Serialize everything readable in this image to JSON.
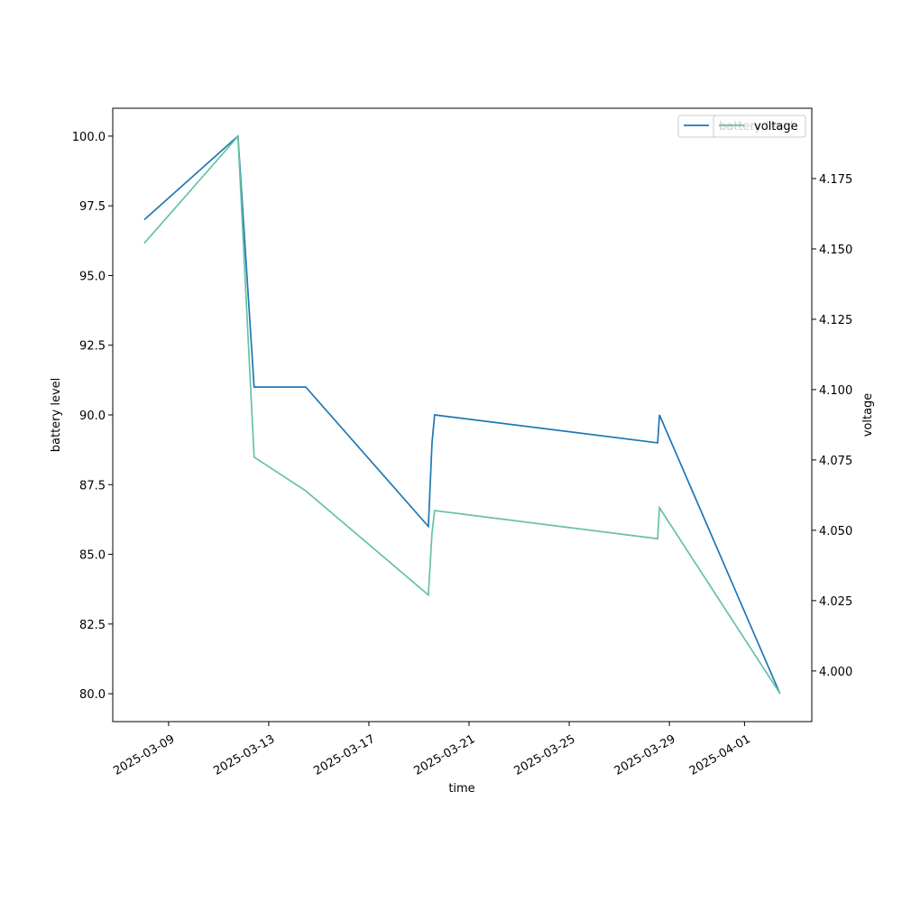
{
  "chart_data": {
    "type": "line",
    "x_label": "time",
    "y_label": "battery level",
    "y2_label": "voltage",
    "x": [
      "2025-03-08 00:40",
      "2025-03-11 18:30",
      "2025-03-12 10:00",
      "2025-03-14 11:30",
      "2025-03-19 09:00",
      "2025-03-19 12:30",
      "2025-03-19 15:00",
      "2025-03-28 12:45",
      "2025-03-28 14:30",
      "2025-04-02 10:00"
    ],
    "series": [
      {
        "name": "battery level",
        "color": "#1f77b4",
        "values": [
          97,
          100,
          91,
          91,
          86,
          89,
          90,
          89,
          90,
          80
        ]
      },
      {
        "name": "voltage",
        "color": "#66c2a5",
        "axis": "y2",
        "values": [
          4.152,
          4.19,
          4.076,
          4.064,
          4.027,
          4.049,
          4.057,
          4.047,
          4.058,
          3.992
        ]
      }
    ],
    "xlim": [
      "2025-03-06 18:30",
      "2025-04-03 16:30"
    ],
    "xticks": [
      "2025-03-09",
      "2025-03-13",
      "2025-03-17",
      "2025-03-21",
      "2025-03-25",
      "2025-03-29",
      "2025-04-01"
    ],
    "ylim": [
      79,
      101
    ],
    "yticks": [
      {
        "value": 80,
        "label": "80.0"
      },
      {
        "value": 82.5,
        "label": "82.5"
      },
      {
        "value": 85,
        "label": "85.0"
      },
      {
        "value": 87.5,
        "label": "87.5"
      },
      {
        "value": 90,
        "label": "90.0"
      },
      {
        "value": 92.5,
        "label": "92.5"
      },
      {
        "value": 95,
        "label": "95.0"
      },
      {
        "value": 97.5,
        "label": "97.5"
      },
      {
        "value": 100,
        "label": "100.0"
      }
    ],
    "y2lim": [
      3.982,
      4.2
    ],
    "y2ticks": [
      {
        "value": 4,
        "label": "4.000"
      },
      {
        "value": 4.025,
        "label": "4.025"
      },
      {
        "value": 4.05,
        "label": "4.050"
      },
      {
        "value": 4.075,
        "label": "4.075"
      },
      {
        "value": 4.1,
        "label": "4.100"
      },
      {
        "value": 4.125,
        "label": "4.125"
      },
      {
        "value": 4.15,
        "label": "4.150"
      },
      {
        "value": 4.175,
        "label": "4.175"
      }
    ],
    "legend": "upper right",
    "grid": false
  }
}
